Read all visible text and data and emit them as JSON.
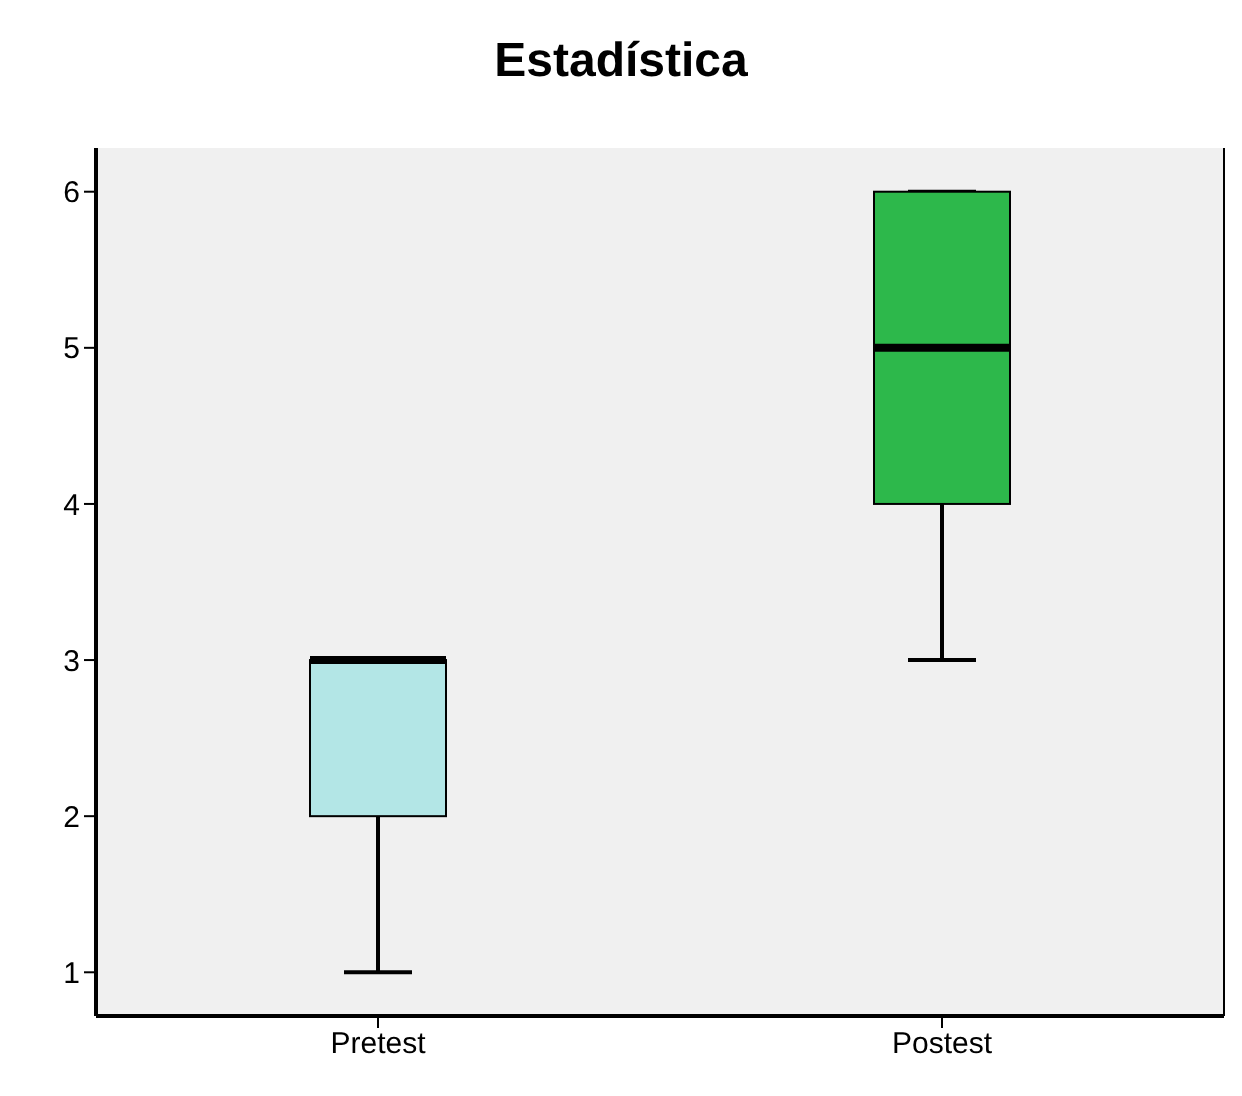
{
  "chart_data": {
    "type": "box",
    "title": "Estadística",
    "categories": [
      "Pretest",
      "Postest"
    ],
    "boxes": [
      {
        "low": 1,
        "q1": 2,
        "median": 3,
        "q3": 3,
        "high": 3
      },
      {
        "low": 3,
        "q1": 4,
        "median": 5,
        "q3": 6,
        "high": 6
      }
    ],
    "colors": [
      "#b3e6e6",
      "#2db84b"
    ],
    "ylim": [
      0.72,
      6.28
    ],
    "yticks": [
      1,
      2,
      3,
      4,
      5,
      6
    ],
    "grid": false,
    "legend": false
  }
}
